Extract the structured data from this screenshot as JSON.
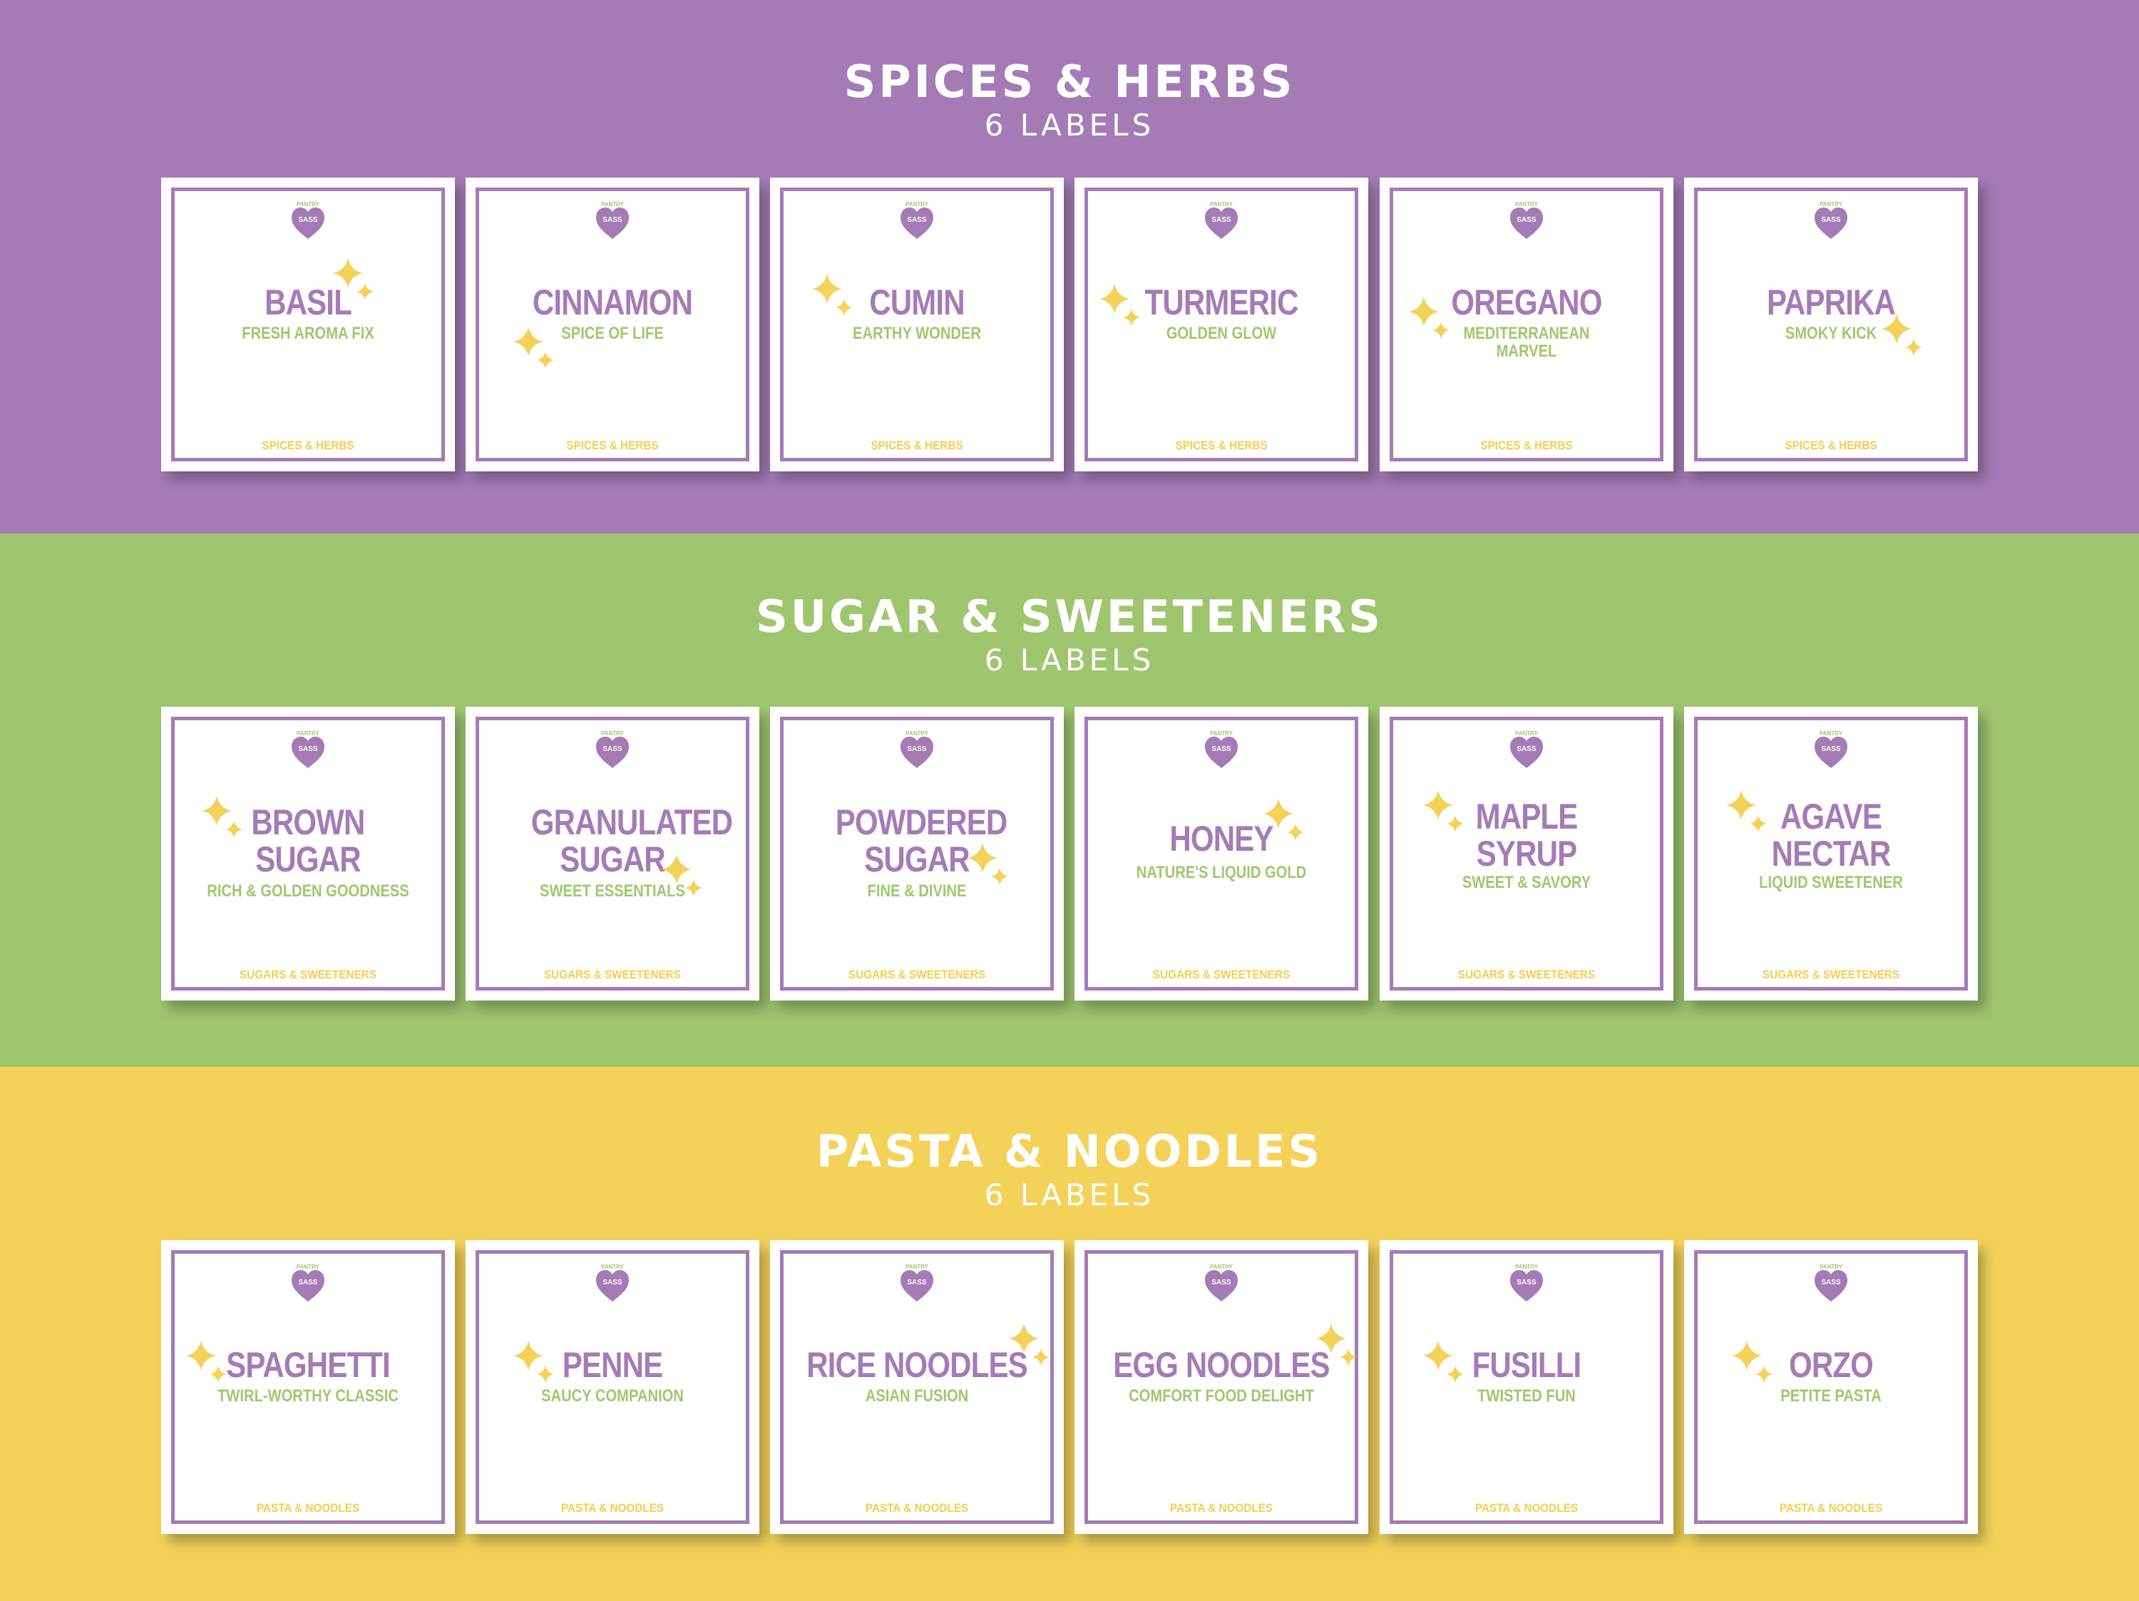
{
  "colors": {
    "purple": "#a57bb6",
    "green": "#a0c56f",
    "yellow": "#f4d25a",
    "label_name": "#a57bb6",
    "label_tagline": "#9fc86e",
    "label_category": "#f2cf4f",
    "sparkle": "#f4d25a",
    "white": "#ffffff"
  },
  "logo": {
    "line1": "PANTRY",
    "line2": "SASS",
    "icon": "heart-icon"
  },
  "sections": [
    {
      "title": "SPICES & HERBS",
      "subtitle": "6 LABELS",
      "labels": [
        {
          "name": "BASIL",
          "tagline": "FRESH AROMA FIX",
          "category": "SPICES & HERBS"
        },
        {
          "name": "CINNAMON",
          "tagline": "SPICE OF LIFE",
          "category": "SPICES & HERBS"
        },
        {
          "name": "CUMIN",
          "tagline": "EARTHY WONDER",
          "category": "SPICES & HERBS"
        },
        {
          "name": "TURMERIC",
          "tagline": "GOLDEN GLOW",
          "category": "SPICES & HERBS"
        },
        {
          "name": "OREGANO",
          "tagline": "MEDITERRANEAN MARVEL",
          "category": "SPICES & HERBS"
        },
        {
          "name": "PAPRIKA",
          "tagline": "SMOKY KICK",
          "category": "SPICES & HERBS"
        }
      ]
    },
    {
      "title": "SUGAR & SWEETENERS",
      "subtitle": "6 LABELS",
      "labels": [
        {
          "name": "BROWN SUGAR",
          "tagline": "RICH & GOLDEN GOODNESS",
          "category": "SUGARS & SWEETENERS"
        },
        {
          "name": "GRANULATED SUGAR",
          "tagline": "SWEET ESSENTIALS",
          "category": "SUGARS & SWEETENERS"
        },
        {
          "name": "POWDERED SUGAR",
          "tagline": "FINE & DIVINE",
          "category": "SUGARS & SWEETENERS"
        },
        {
          "name": "HONEY",
          "tagline": "NATURE'S LIQUID GOLD",
          "category": "SUGARS & SWEETENERS"
        },
        {
          "name": "MAPLE SYRUP",
          "tagline": "SWEET & SAVORY",
          "category": "SUGARS & SWEETENERS"
        },
        {
          "name": "AGAVE NECTAR",
          "tagline": "LIQUID SWEETENER",
          "category": "SUGARS & SWEETENERS"
        }
      ]
    },
    {
      "title": "PASTA & NOODLES",
      "subtitle": "6 LABELS",
      "labels": [
        {
          "name": "SPAGHETTI",
          "tagline": "TWIRL-WORTHY CLASSIC",
          "category": "PASTA & NOODLES"
        },
        {
          "name": "PENNE",
          "tagline": "SAUCY COMPANION",
          "category": "PASTA & NOODLES"
        },
        {
          "name": "RICE NOODLES",
          "tagline": "ASIAN FUSION",
          "category": "PASTA & NOODLES"
        },
        {
          "name": "EGG NOODLES",
          "tagline": "COMFORT FOOD DELIGHT",
          "category": "PASTA & NOODLES"
        },
        {
          "name": "FUSILLI",
          "tagline": "TWISTED FUN",
          "category": "PASTA & NOODLES"
        },
        {
          "name": "ORZO",
          "tagline": "PETITE PASTA",
          "category": "PASTA & NOODLES"
        }
      ]
    }
  ]
}
